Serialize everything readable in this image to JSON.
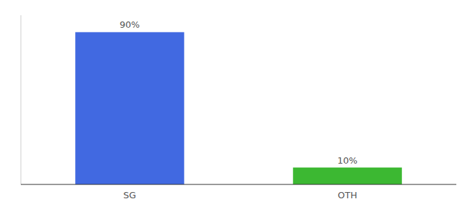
{
  "chart_data": {
    "type": "bar",
    "categories": [
      "SG",
      "OTH"
    ],
    "values": [
      90,
      10
    ],
    "value_labels": [
      "90%",
      "10%"
    ],
    "colors": [
      "#4169e1",
      "#3cb832"
    ],
    "ylim": [
      0,
      100
    ],
    "data_labels": true,
    "tick_labels": "x"
  }
}
